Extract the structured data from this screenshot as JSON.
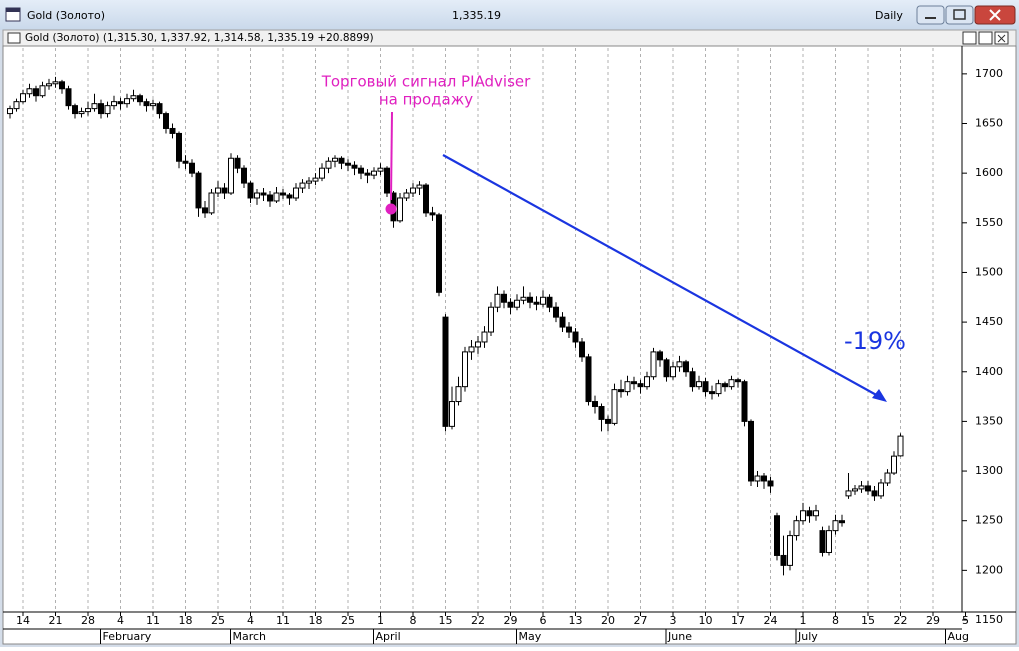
{
  "window": {
    "title": "Gold (Золото)",
    "last_price": "1,335.19",
    "period": "Daily",
    "header": "Gold (Золото) (1,315.30, 1,337.92, 1,314.58, 1,335.19 +20.8899)"
  },
  "chart_data": {
    "type": "candlestick",
    "annotations": [
      "Торговый сигнал PIAdviser",
      "на продажу",
      "-19%"
    ],
    "up_color": "#ffffff",
    "down_color": "#000000",
    "ylim": [
      1150,
      1720
    ],
    "yticks": [
      1150,
      1200,
      1250,
      1300,
      1350,
      1400,
      1450,
      1500,
      1550,
      1600,
      1650,
      1700
    ],
    "x_tick_labels": [
      "14",
      "21",
      "28",
      "4",
      "11",
      "18",
      "25",
      "4",
      "11",
      "18",
      "25",
      "1",
      "8",
      "15",
      "22",
      "29",
      "6",
      "13",
      "20",
      "27",
      "3",
      "10",
      "17",
      "24",
      "1",
      "8",
      "15",
      "22",
      "29",
      "5"
    ],
    "months": [
      "February",
      "March",
      "April",
      "May",
      "June",
      "July",
      "Aug"
    ],
    "grid": true,
    "ohlc": [
      [
        1660,
        1668,
        1655,
        1665
      ],
      [
        1665,
        1675,
        1662,
        1672
      ],
      [
        1672,
        1684,
        1670,
        1680
      ],
      [
        1680,
        1690,
        1676,
        1685
      ],
      [
        1685,
        1688,
        1672,
        1678
      ],
      [
        1678,
        1692,
        1676,
        1688
      ],
      [
        1688,
        1695,
        1684,
        1690
      ],
      [
        1690,
        1697,
        1686,
        1692
      ],
      [
        1692,
        1694,
        1680,
        1685
      ],
      [
        1685,
        1688,
        1664,
        1668
      ],
      [
        1668,
        1670,
        1655,
        1660
      ],
      [
        1660,
        1666,
        1656,
        1662
      ],
      [
        1662,
        1672,
        1658,
        1665
      ],
      [
        1665,
        1680,
        1662,
        1670
      ],
      [
        1670,
        1674,
        1655,
        1660
      ],
      [
        1660,
        1672,
        1656,
        1668
      ],
      [
        1668,
        1678,
        1664,
        1672
      ],
      [
        1672,
        1676,
        1664,
        1670
      ],
      [
        1670,
        1680,
        1666,
        1675
      ],
      [
        1675,
        1684,
        1672,
        1678
      ],
      [
        1678,
        1680,
        1668,
        1672
      ],
      [
        1672,
        1675,
        1662,
        1668
      ],
      [
        1668,
        1674,
        1664,
        1670
      ],
      [
        1670,
        1672,
        1655,
        1660
      ],
      [
        1660,
        1662,
        1640,
        1645
      ],
      [
        1645,
        1650,
        1635,
        1640
      ],
      [
        1640,
        1642,
        1605,
        1612
      ],
      [
        1612,
        1618,
        1604,
        1610
      ],
      [
        1610,
        1614,
        1596,
        1600
      ],
      [
        1600,
        1602,
        1556,
        1565
      ],
      [
        1565,
        1572,
        1555,
        1560
      ],
      [
        1560,
        1584,
        1558,
        1580
      ],
      [
        1580,
        1592,
        1576,
        1585
      ],
      [
        1585,
        1590,
        1574,
        1580
      ],
      [
        1580,
        1620,
        1578,
        1615
      ],
      [
        1615,
        1618,
        1600,
        1605
      ],
      [
        1605,
        1608,
        1585,
        1590
      ],
      [
        1590,
        1592,
        1570,
        1575
      ],
      [
        1575,
        1584,
        1568,
        1580
      ],
      [
        1580,
        1585,
        1572,
        1578
      ],
      [
        1578,
        1582,
        1566,
        1572
      ],
      [
        1572,
        1586,
        1570,
        1580
      ],
      [
        1580,
        1584,
        1574,
        1578
      ],
      [
        1578,
        1580,
        1568,
        1575
      ],
      [
        1575,
        1590,
        1572,
        1585
      ],
      [
        1585,
        1594,
        1580,
        1590
      ],
      [
        1590,
        1596,
        1584,
        1592
      ],
      [
        1592,
        1600,
        1588,
        1595
      ],
      [
        1595,
        1610,
        1592,
        1605
      ],
      [
        1605,
        1616,
        1600,
        1612
      ],
      [
        1612,
        1618,
        1606,
        1615
      ],
      [
        1615,
        1617,
        1604,
        1610
      ],
      [
        1610,
        1614,
        1602,
        1608
      ],
      [
        1608,
        1612,
        1598,
        1605
      ],
      [
        1605,
        1608,
        1594,
        1600
      ],
      [
        1600,
        1604,
        1590,
        1598
      ],
      [
        1598,
        1606,
        1594,
        1602
      ],
      [
        1602,
        1610,
        1598,
        1605
      ],
      [
        1605,
        1607,
        1576,
        1580
      ],
      [
        1580,
        1582,
        1545,
        1552
      ],
      [
        1552,
        1580,
        1550,
        1575
      ],
      [
        1575,
        1584,
        1572,
        1580
      ],
      [
        1580,
        1590,
        1576,
        1585
      ],
      [
        1585,
        1592,
        1578,
        1588
      ],
      [
        1588,
        1590,
        1556,
        1560
      ],
      [
        1560,
        1566,
        1552,
        1558
      ],
      [
        1558,
        1560,
        1476,
        1480
      ],
      [
        1455,
        1458,
        1340,
        1345
      ],
      [
        1345,
        1385,
        1342,
        1370
      ],
      [
        1370,
        1395,
        1366,
        1385
      ],
      [
        1385,
        1425,
        1380,
        1420
      ],
      [
        1420,
        1432,
        1412,
        1425
      ],
      [
        1425,
        1436,
        1418,
        1430
      ],
      [
        1430,
        1446,
        1424,
        1440
      ],
      [
        1440,
        1470,
        1436,
        1465
      ],
      [
        1465,
        1486,
        1460,
        1478
      ],
      [
        1478,
        1482,
        1464,
        1470
      ],
      [
        1470,
        1474,
        1458,
        1465
      ],
      [
        1465,
        1478,
        1462,
        1472
      ],
      [
        1472,
        1486,
        1468,
        1475
      ],
      [
        1475,
        1480,
        1464,
        1470
      ],
      [
        1470,
        1476,
        1462,
        1468
      ],
      [
        1468,
        1482,
        1465,
        1475
      ],
      [
        1475,
        1478,
        1460,
        1465
      ],
      [
        1465,
        1470,
        1450,
        1455
      ],
      [
        1455,
        1460,
        1440,
        1445
      ],
      [
        1445,
        1450,
        1434,
        1440
      ],
      [
        1440,
        1444,
        1424,
        1430
      ],
      [
        1430,
        1434,
        1410,
        1415
      ],
      [
        1415,
        1418,
        1366,
        1370
      ],
      [
        1370,
        1376,
        1358,
        1365
      ],
      [
        1365,
        1368,
        1340,
        1352
      ],
      [
        1352,
        1356,
        1340,
        1348
      ],
      [
        1348,
        1388,
        1346,
        1382
      ],
      [
        1382,
        1392,
        1374,
        1380
      ],
      [
        1380,
        1396,
        1376,
        1390
      ],
      [
        1390,
        1395,
        1382,
        1388
      ],
      [
        1388,
        1392,
        1378,
        1385
      ],
      [
        1385,
        1400,
        1382,
        1395
      ],
      [
        1395,
        1424,
        1392,
        1420
      ],
      [
        1420,
        1422,
        1405,
        1412
      ],
      [
        1412,
        1414,
        1390,
        1395
      ],
      [
        1395,
        1410,
        1392,
        1405
      ],
      [
        1405,
        1416,
        1400,
        1410
      ],
      [
        1410,
        1412,
        1395,
        1400
      ],
      [
        1400,
        1404,
        1380,
        1385
      ],
      [
        1385,
        1396,
        1382,
        1390
      ],
      [
        1390,
        1394,
        1375,
        1380
      ],
      [
        1380,
        1386,
        1372,
        1378
      ],
      [
        1378,
        1392,
        1375,
        1388
      ],
      [
        1388,
        1390,
        1380,
        1385
      ],
      [
        1385,
        1396,
        1382,
        1392
      ],
      [
        1392,
        1394,
        1384,
        1390
      ],
      [
        1390,
        1392,
        1345,
        1350
      ],
      [
        1350,
        1352,
        1285,
        1290
      ],
      [
        1290,
        1300,
        1284,
        1295
      ],
      [
        1295,
        1298,
        1282,
        1290
      ],
      [
        1290,
        1294,
        1278,
        1285
      ],
      [
        1255,
        1258,
        1210,
        1215
      ],
      [
        1215,
        1235,
        1195,
        1205
      ],
      [
        1205,
        1240,
        1200,
        1235
      ],
      [
        1235,
        1255,
        1230,
        1250
      ],
      [
        1250,
        1268,
        1246,
        1260
      ],
      [
        1260,
        1264,
        1248,
        1255
      ],
      [
        1255,
        1266,
        1250,
        1260
      ],
      [
        1240,
        1244,
        1214,
        1218
      ],
      [
        1218,
        1245,
        1215,
        1240
      ],
      [
        1240,
        1256,
        1236,
        1250
      ],
      [
        1250,
        1256,
        1244,
        1248
      ],
      [
        1275,
        1298,
        1272,
        1280
      ],
      [
        1280,
        1286,
        1276,
        1282
      ],
      [
        1282,
        1290,
        1278,
        1285
      ],
      [
        1285,
        1290,
        1276,
        1280
      ],
      [
        1280,
        1285,
        1270,
        1275
      ],
      [
        1275,
        1292,
        1272,
        1288
      ],
      [
        1288,
        1302,
        1285,
        1298
      ],
      [
        1298,
        1320,
        1296,
        1315
      ],
      [
        1315.3,
        1337.92,
        1314.58,
        1335.19
      ]
    ]
  }
}
